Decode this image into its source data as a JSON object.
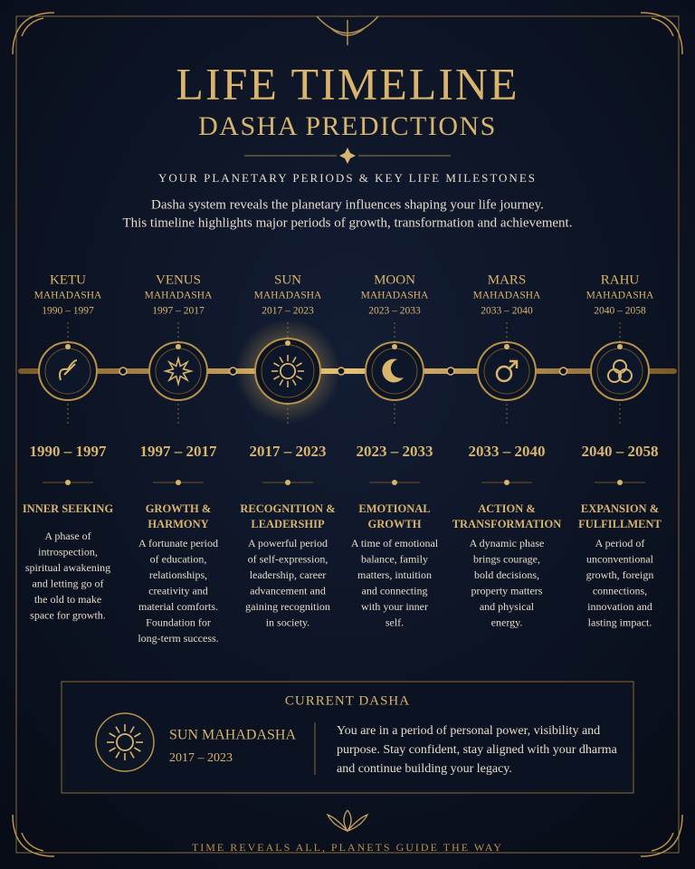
{
  "header": {
    "title": "LIFE TIMELINE",
    "subtitle": "DASHA PREDICTIONS",
    "tagline": "YOUR PLANETARY PERIODS & KEY LIFE MILESTONES",
    "intro": [
      "Dasha system reveals the planetary influences shaping your life journey.",
      "This timeline highlights major periods of growth, transformation and achievement."
    ]
  },
  "periods": [
    {
      "planet": "KETU",
      "kind": "MAHADASHA",
      "range": "1990 – 1997",
      "heading": [
        "INNER SEEKING"
      ],
      "description": [
        "A phase of",
        "introspection,",
        "spiritual awakening",
        "and letting go of",
        "the old to make",
        "space for growth."
      ]
    },
    {
      "planet": "VENUS",
      "kind": "MAHADASHA",
      "range": "1997 – 2017",
      "heading": [
        "GROWTH &",
        "HARMONY"
      ],
      "description": [
        "A fortunate period",
        "of education,",
        "relationships,",
        "creativity and",
        "material comforts.",
        "Foundation for",
        "long-term success."
      ]
    },
    {
      "planet": "SUN",
      "kind": "MAHADASHA",
      "range": "2017 – 2023",
      "heading": [
        "RECOGNITION &",
        "LEADERSHIP"
      ],
      "description": [
        "A powerful period",
        "of self-expression,",
        "leadership, career",
        "advancement and",
        "gaining recognition",
        "in society."
      ]
    },
    {
      "planet": "MOON",
      "kind": "MAHADASHA",
      "range": "2023 – 2033",
      "heading": [
        "EMOTIONAL",
        "GROWTH"
      ],
      "description": [
        "A time of emotional",
        "balance, family",
        "matters, intuition",
        "and connecting",
        "with your inner",
        "self."
      ]
    },
    {
      "planet": "MARS",
      "kind": "MAHADASHA",
      "range": "2033 – 2040",
      "heading": [
        "ACTION &",
        "TRANSFORMATION"
      ],
      "description": [
        "A dynamic phase",
        "brings courage,",
        "bold decisions,",
        "property matters",
        "and physical",
        "energy."
      ]
    },
    {
      "planet": "RAHU",
      "kind": "MAHADASHA",
      "range": "2040 – 2058",
      "heading": [
        "EXPANSION &",
        "FULFILLMENT"
      ],
      "description": [
        "A period of",
        "unconventional",
        "growth, foreign",
        "connections,",
        "innovation and",
        "lasting impact."
      ]
    }
  ],
  "current": {
    "label": "CURRENT DASHA",
    "name": "SUN MAHADASHA",
    "range": "2017 – 2023",
    "message": [
      "You are in a period of personal power, visibility and",
      "purpose. Stay confident, stay aligned with your dharma",
      "and continue building your legacy."
    ]
  },
  "footer": "TIME REVEALS ALL, PLANETS GUIDE THE WAY"
}
